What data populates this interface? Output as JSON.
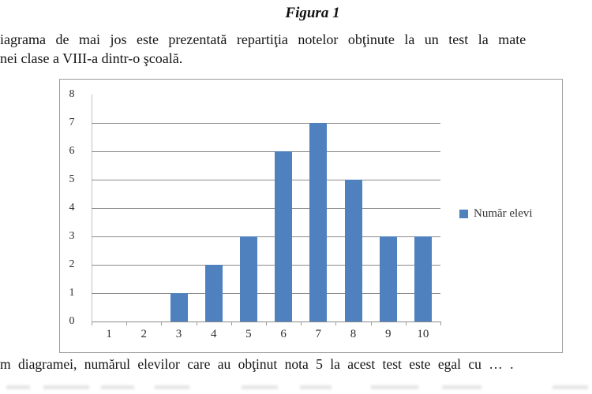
{
  "document": {
    "figure_title": "Figura 1",
    "intro_line1": "iagrama de mai jos este prezentată repartiţia notelor obţinute la un test la mate",
    "intro_line2": "nei clase a VIII-a dintr-o şcoală.",
    "question_line": "m diagramei, numărul elevilor care au obţinut nota 5 la acest test este egal cu … ."
  },
  "chart_data": {
    "type": "bar",
    "title": "",
    "categories": [
      "1",
      "2",
      "3",
      "4",
      "5",
      "6",
      "7",
      "8",
      "9",
      "10"
    ],
    "values": [
      0,
      0,
      1,
      2,
      3,
      6,
      7,
      5,
      3,
      3
    ],
    "series": [
      {
        "name": "Număr elevi",
        "values": [
          0,
          0,
          1,
          2,
          3,
          6,
          7,
          5,
          3,
          3
        ]
      }
    ],
    "legend_label": "Număr elevi",
    "xlabel": "",
    "ylabel": "",
    "ylim": [
      0,
      8
    ],
    "ytick_labels": [
      "0",
      "1",
      "2",
      "3",
      "4",
      "5",
      "6",
      "7",
      "8"
    ],
    "grid": true,
    "legend_position": "right",
    "bar_color": "#4E81BD"
  }
}
